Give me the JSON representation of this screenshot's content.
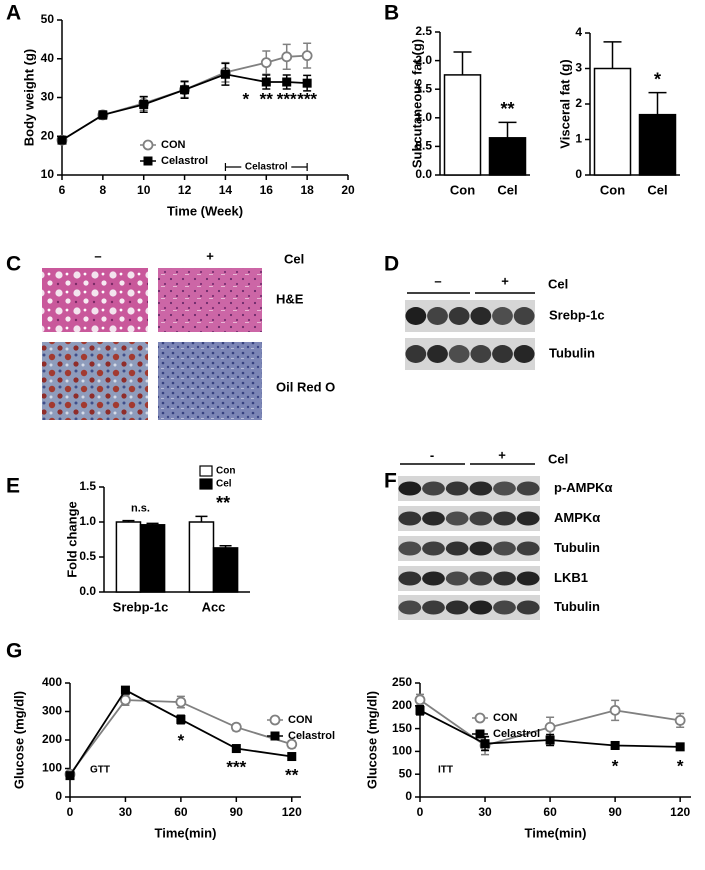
{
  "panel_labels": [
    "A",
    "B",
    "C",
    "D",
    "E",
    "F",
    "G"
  ],
  "histology": {
    "signs": [
      "–",
      "+"
    ],
    "treatment": "Cel",
    "stains": [
      "H&E",
      "Oil Red O"
    ]
  },
  "blot_d": {
    "signs": [
      "–",
      "+"
    ],
    "treatment": "Cel",
    "bands": [
      "Srebp-1c",
      "Tubulin"
    ]
  },
  "blot_f": {
    "signs": [
      "-",
      "+"
    ],
    "treatment": "Cel",
    "bands": [
      "p-AMPKα",
      "AMPKα",
      "Tubulin",
      "LKB1",
      "Tubulin"
    ]
  },
  "chart_data": [
    {
      "type": "line",
      "xlabel": "Time (Week)",
      "ylabel": "Body weight (g)",
      "x": [
        6,
        8,
        10,
        12,
        14,
        16,
        17,
        18
      ],
      "xlim": [
        6,
        20
      ],
      "xticks": [
        6,
        8,
        10,
        12,
        14,
        16,
        18,
        20
      ],
      "ylim": [
        10,
        50
      ],
      "yticks": [
        10,
        20,
        30,
        40,
        50
      ],
      "series": [
        {
          "name": "CON",
          "color": "#808080",
          "marker": "open-circle",
          "values": [
            19,
            25.5,
            28.5,
            32,
            36.5,
            39,
            40.5,
            40.8
          ],
          "errors": [
            0.8,
            1,
            1.8,
            2,
            2.5,
            3,
            3.2,
            3.2
          ]
        },
        {
          "name": "Celastrol",
          "color": "#000000",
          "marker": "square",
          "values": [
            19,
            25.5,
            28.2,
            32,
            36,
            34,
            34,
            33.7
          ],
          "errors": [
            0.8,
            1,
            2,
            2.2,
            2.8,
            1.8,
            1.8,
            2
          ]
        }
      ],
      "annotations": [
        {
          "text": "*",
          "x": 15
        },
        {
          "text": "**",
          "x": 16
        },
        {
          "text": "***",
          "x": 17
        },
        {
          "text": "***",
          "x": 18
        }
      ],
      "treatment": {
        "label": "Celastrol",
        "x": [
          14,
          18
        ]
      }
    },
    {
      "type": "bar",
      "ylabel": "Subcutaneous fat (g)",
      "categories": [
        "Con",
        "Cel"
      ],
      "values": [
        1.75,
        0.65
      ],
      "errors": [
        0.4,
        0.27
      ],
      "colors": [
        "#ffffff",
        "#000000"
      ],
      "ylim": [
        0,
        2.5
      ],
      "yticks": [
        {
          "value": 0,
          "label": "0.0"
        },
        0.5,
        {
          "value": 1,
          "label": "1.0"
        },
        1.5,
        {
          "value": 2,
          "label": "2.0"
        },
        2.5
      ],
      "annotations": [
        {
          "text": "**",
          "x": "Cel"
        }
      ]
    },
    {
      "type": "bar",
      "ylabel": "Visceral fat (g)",
      "categories": [
        "Con",
        "Cel"
      ],
      "values": [
        3.0,
        1.7
      ],
      "errors": [
        0.75,
        0.62
      ],
      "colors": [
        "#ffffff",
        "#000000"
      ],
      "ylim": [
        0,
        4
      ],
      "yticks": [
        0,
        1,
        2,
        3,
        4
      ],
      "annotations": [
        {
          "text": "*",
          "x": "Cel"
        }
      ]
    },
    {
      "type": "bar",
      "ylabel": "Fold change",
      "categories": [
        "Srebp-1c",
        "Acc"
      ],
      "series": [
        {
          "name": "Con",
          "color": "#ffffff",
          "values": [
            1.0,
            1.0
          ],
          "errors": [
            0.02,
            0.08
          ]
        },
        {
          "name": "Cel",
          "color": "#000000",
          "values": [
            0.96,
            0.63
          ],
          "errors": [
            0.02,
            0.03
          ]
        }
      ],
      "ylim": [
        0,
        1.5
      ],
      "yticks": [
        {
          "value": 0,
          "label": "0.0"
        },
        0.5,
        {
          "value": 1,
          "label": "1.0"
        },
        1.5
      ],
      "annotations": [
        {
          "text": "n.s.",
          "x": "Srebp-1c"
        },
        {
          "text": "**",
          "x": "Acc"
        }
      ]
    },
    {
      "type": "line",
      "label": "GTT",
      "xlabel": "Time(min)",
      "ylabel": "Glucose (mg/dl)",
      "x": [
        0,
        30,
        60,
        90,
        120
      ],
      "xlim": [
        0,
        125
      ],
      "xticks": [
        0,
        30,
        60,
        90,
        120
      ],
      "ylim": [
        0,
        400
      ],
      "yticks": [
        0,
        100,
        200,
        300,
        400
      ],
      "series": [
        {
          "name": "CON",
          "color": "#808080",
          "marker": "open-circle",
          "values": [
            80,
            340,
            333,
            245,
            185
          ],
          "errors": [
            8,
            18,
            20,
            12,
            12
          ]
        },
        {
          "name": "Celastrol",
          "color": "#000000",
          "marker": "square",
          "values": [
            75,
            375,
            272,
            170,
            142
          ],
          "errors": [
            8,
            12,
            15,
            6,
            6
          ]
        }
      ],
      "annotations": [
        {
          "text": "*",
          "x": 60
        },
        {
          "text": "***",
          "x": 90
        },
        {
          "text": "**",
          "x": 120
        }
      ]
    },
    {
      "type": "line",
      "label": "ITT",
      "xlabel": "Time(min)",
      "ylabel": "Glucose (mg/dl)",
      "x": [
        0,
        30,
        60,
        90,
        120
      ],
      "xlim": [
        0,
        125
      ],
      "xticks": [
        0,
        30,
        60,
        90,
        120
      ],
      "ylim": [
        0,
        250
      ],
      "yticks": [
        0,
        50,
        100,
        150,
        200,
        250
      ],
      "series": [
        {
          "name": "CON",
          "color": "#808080",
          "marker": "open-circle",
          "values": [
            213,
            113,
            153,
            190,
            168
          ],
          "errors": [
            12,
            20,
            22,
            22,
            15
          ]
        },
        {
          "name": "Celastrol",
          "color": "#000000",
          "marker": "square",
          "values": [
            190,
            117,
            125,
            113,
            110
          ],
          "errors": [
            10,
            15,
            12,
            8,
            5
          ]
        }
      ],
      "annotations": [
        {
          "text": "*",
          "x": 90
        },
        {
          "text": "*",
          "x": 120
        }
      ]
    }
  ]
}
